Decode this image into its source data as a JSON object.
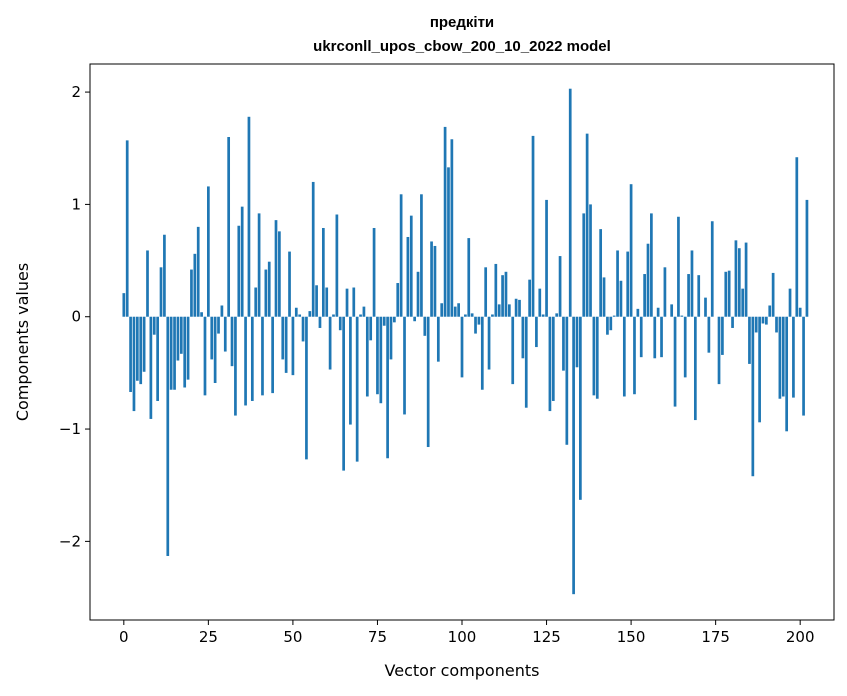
{
  "chart_data": {
    "type": "bar",
    "title_lines": [
      "предкіти",
      "ukrconll_upos_cbow_200_10_2022 model"
    ],
    "xlabel": "Vector components",
    "ylabel": "Components values",
    "xlim": [
      -10,
      210
    ],
    "ylim": [
      -2.7,
      2.25
    ],
    "xticks": [
      0,
      25,
      50,
      75,
      100,
      125,
      150,
      175,
      200
    ],
    "xtick_labels": [
      "0",
      "25",
      "50",
      "75",
      "100",
      "125",
      "150",
      "175",
      "200"
    ],
    "yticks": [
      -2,
      -1,
      0,
      1,
      2
    ],
    "ytick_labels": [
      "−2",
      "−1",
      "0",
      "1",
      "2"
    ],
    "grid": false,
    "bar_color": "#1f77b4",
    "values": [
      0.21,
      1.57,
      -0.67,
      -0.84,
      -0.57,
      -0.6,
      -0.49,
      0.59,
      -0.91,
      -0.16,
      -0.75,
      0.44,
      0.73,
      -2.13,
      -0.65,
      -0.65,
      -0.39,
      -0.33,
      -0.63,
      -0.56,
      0.42,
      0.56,
      0.8,
      0.04,
      -0.7,
      1.16,
      -0.38,
      -0.59,
      -0.15,
      0.1,
      -0.31,
      1.6,
      -0.44,
      -0.88,
      0.81,
      0.98,
      -0.79,
      1.78,
      -0.75,
      0.26,
      0.92,
      -0.7,
      0.42,
      0.49,
      -0.68,
      0.86,
      0.76,
      -0.38,
      -0.5,
      0.58,
      -0.52,
      0.08,
      0.02,
      -0.22,
      -1.27,
      0.05,
      1.2,
      0.28,
      -0.1,
      0.79,
      0.26,
      -0.47,
      0.02,
      0.91,
      -0.12,
      -1.37,
      0.25,
      -0.96,
      0.26,
      -1.29,
      0.02,
      0.09,
      -0.71,
      -0.21,
      0.79,
      -0.69,
      -0.77,
      -0.08,
      -1.26,
      -0.38,
      -0.05,
      0.3,
      1.09,
      -0.87,
      0.71,
      0.9,
      -0.04,
      0.4,
      1.09,
      -0.17,
      -1.16,
      0.67,
      0.63,
      -0.4,
      0.12,
      1.69,
      1.33,
      1.58,
      0.09,
      0.12,
      -0.54,
      0.02,
      0.7,
      0.03,
      -0.15,
      -0.07,
      -0.65,
      0.44,
      -0.47,
      0.02,
      0.47,
      0.11,
      0.37,
      0.4,
      0.11,
      -0.6,
      0.16,
      0.15,
      -0.37,
      -0.81,
      0.33,
      1.61,
      -0.27,
      0.25,
      0.02,
      1.04,
      -0.84,
      -0.75,
      0.03,
      0.54,
      -0.48,
      -1.14,
      2.03,
      -2.47,
      -0.45,
      -1.63,
      0.92,
      1.63,
      1.0,
      -0.7,
      -0.73,
      0.78,
      0.35,
      -0.16,
      -0.12,
      0.01,
      0.59,
      0.32,
      -0.71,
      0.58,
      1.18,
      -0.69,
      0.07,
      -0.36,
      0.38,
      0.65,
      0.92,
      -0.37,
      0.08,
      -0.36,
      0.44,
      0.0,
      0.11,
      -0.8,
      0.89,
      0.01,
      -0.54,
      0.38,
      0.59,
      -0.92,
      0.37,
      0.0,
      0.17,
      -0.32,
      0.85,
      0.0,
      -0.6,
      -0.34,
      0.4,
      0.41,
      -0.1,
      0.68,
      0.61,
      0.25,
      0.66,
      -0.42,
      -1.42,
      -0.14,
      -0.94,
      -0.06,
      -0.07,
      0.1,
      0.39,
      -0.14,
      -0.73,
      -0.71,
      -1.02,
      0.25,
      -0.72,
      1.42,
      0.08,
      -0.88,
      1.04
    ]
  }
}
